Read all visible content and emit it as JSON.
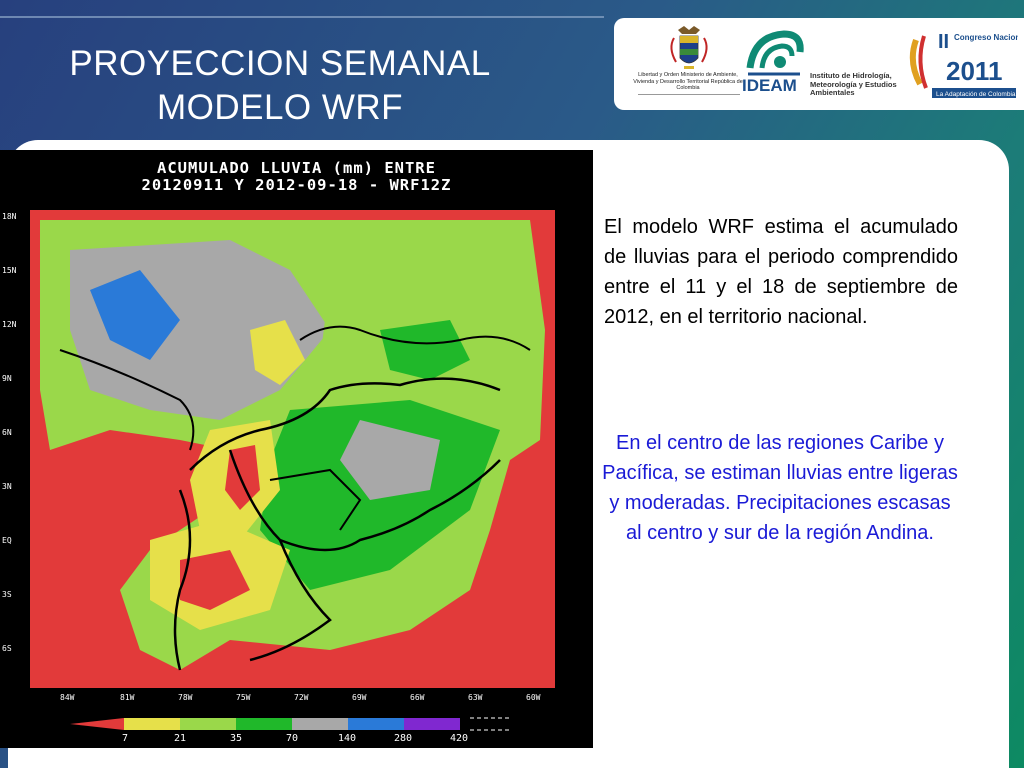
{
  "slide": {
    "title_line1": "PROYECCION SEMANAL",
    "title_line2": "MODELO WRF"
  },
  "logos": {
    "emblem_caption": "Libertad y Orden Ministerio de Ambiente, Vivienda y Desarrollo Territorial República de Colombia",
    "ideam_name": "IDEAM",
    "ideam_institute": "Instituto de Hidrología, Meteorología y Estudios Ambientales",
    "congreso_numeral": "II",
    "congreso_label": "Congreso Nacional del Clima",
    "congreso_year": "2011",
    "congreso_tagline": "La Adaptación de Colombia"
  },
  "map": {
    "title_line1": "ACUMULADO LLUVIA (mm) ENTRE",
    "title_line2": "20120911 Y 2012-09-18 - WRF12Z",
    "lat_labels": [
      "18N",
      "15N",
      "12N",
      "9N",
      "6N",
      "3N",
      "EQ",
      "3S",
      "6S"
    ],
    "lon_labels": [
      "84W",
      "81W",
      "78W",
      "75W",
      "72W",
      "69W",
      "66W",
      "63W",
      "60W"
    ],
    "legend_values": [
      "7",
      "21",
      "35",
      "70",
      "140",
      "280",
      "420"
    ],
    "legend_colors": [
      "#e23a3a",
      "#e6e04a",
      "#9ad84a",
      "#20b82a",
      "#a8a8a8",
      "#2a7ad8",
      "#8028d0"
    ]
  },
  "text": {
    "para1": "El modelo WRF estima el acumulado de lluvias para el periodo comprendido entre el 11 y el 18 de septiembre de 2012, en el territorio nacional.",
    "para2": "En el centro de las regiones Caribe y Pacífica, se estiman lluvias entre ligeras y moderadas. Precipitaciones escasas al centro y sur de la región Andina."
  },
  "colors": {
    "background_start": "#27407e",
    "background_end": "#0d8a62",
    "title_text": "#ffffff",
    "blue_text": "#1a1ad6",
    "ideam_blue": "#1c4f8d"
  }
}
